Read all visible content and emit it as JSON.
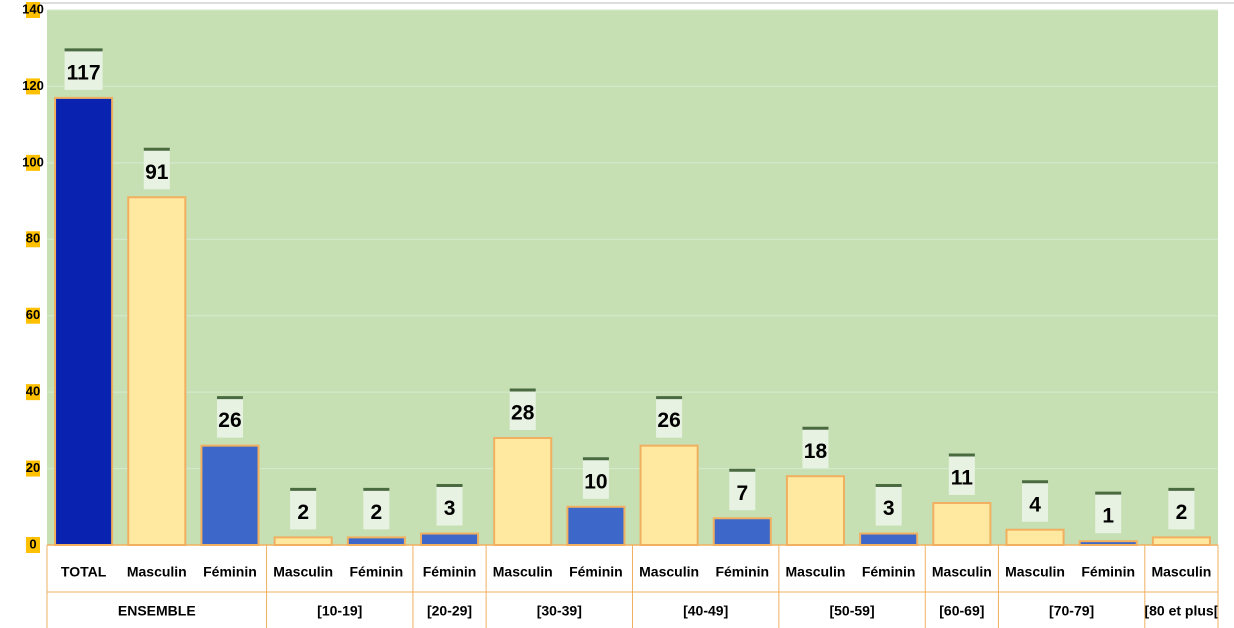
{
  "chart_data": {
    "type": "bar",
    "categories": [
      "TOTAL",
      "Masculin",
      "Féminin",
      "Masculin",
      "Féminin",
      "Féminin",
      "Masculin",
      "Féminin",
      "Masculin",
      "Féminin",
      "Masculin",
      "Féminin",
      "Masculin",
      "Masculin",
      "Féminin",
      "Masculin"
    ],
    "values": [
      117,
      91,
      26,
      2,
      2,
      3,
      28,
      10,
      26,
      7,
      18,
      3,
      11,
      4,
      1,
      2
    ],
    "colors": [
      "#0a22b0",
      "#ffe8a0",
      "#3d68c9",
      "#ffe8a0",
      "#3d68c9",
      "#3d68c9",
      "#ffe8a0",
      "#3d68c9",
      "#ffe8a0",
      "#3d68c9",
      "#ffe8a0",
      "#3d68c9",
      "#ffe8a0",
      "#ffe8a0",
      "#3d68c9",
      "#ffe8a0"
    ],
    "groups": [
      {
        "label": "ENSEMBLE",
        "count": 3
      },
      {
        "label": "[10-19]",
        "count": 2
      },
      {
        "label": "[20-29]",
        "count": 1
      },
      {
        "label": "[30-39]",
        "count": 2
      },
      {
        "label": "[40-49]",
        "count": 2
      },
      {
        "label": "[50-59]",
        "count": 2
      },
      {
        "label": "[60-69]",
        "count": 1
      },
      {
        "label": "[70-79]",
        "count": 2
      },
      {
        "label": "[80 et plus[",
        "count": 1
      }
    ],
    "ylim": [
      0,
      140
    ],
    "yticks": [
      0,
      20,
      40,
      60,
      80,
      100,
      120,
      140
    ],
    "grid": true,
    "background": "#c6e0b4"
  }
}
